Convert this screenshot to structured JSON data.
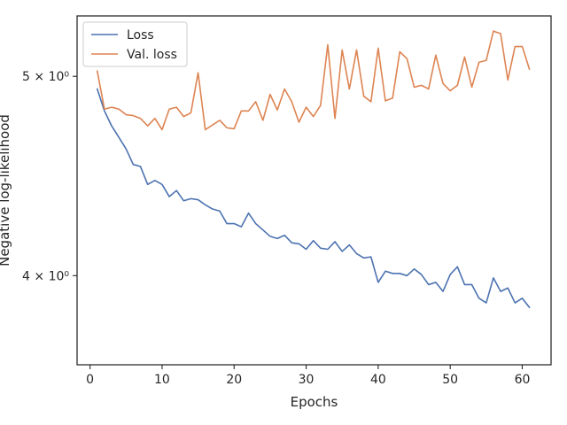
{
  "chart_data": {
    "type": "line",
    "xlabel": "Epochs",
    "ylabel": "Negative log-likelihood",
    "y_scale": "log",
    "xlim": [
      -1.8,
      64
    ],
    "ylim": [
      3.62,
      5.35
    ],
    "x_ticks": [
      {
        "value": 0,
        "label": "0"
      },
      {
        "value": 10,
        "label": "10"
      },
      {
        "value": 20,
        "label": "20"
      },
      {
        "value": 30,
        "label": "30"
      },
      {
        "value": 40,
        "label": "40"
      },
      {
        "value": 50,
        "label": "50"
      },
      {
        "value": 60,
        "label": "60"
      }
    ],
    "y_ticks": [
      {
        "value": 4,
        "label": "4 × 10⁰"
      },
      {
        "value": 5,
        "label": "5 × 10⁰"
      }
    ],
    "grid": false,
    "legend_position": "top-left",
    "x": [
      1,
      2,
      3,
      4,
      5,
      6,
      7,
      8,
      9,
      10,
      11,
      12,
      13,
      14,
      15,
      16,
      17,
      18,
      19,
      20,
      21,
      22,
      23,
      24,
      25,
      26,
      27,
      28,
      29,
      30,
      31,
      32,
      33,
      34,
      35,
      36,
      37,
      38,
      39,
      40,
      41,
      42,
      43,
      44,
      45,
      46,
      47,
      48,
      49,
      50,
      51,
      52,
      53,
      54,
      55,
      56,
      57,
      58,
      59,
      60,
      61
    ],
    "series": [
      {
        "name": "Loss",
        "color": "#4c72b0",
        "values": [
          4.93,
          4.81,
          4.73,
          4.67,
          4.61,
          4.53,
          4.52,
          4.43,
          4.45,
          4.43,
          4.37,
          4.4,
          4.35,
          4.36,
          4.355,
          4.33,
          4.31,
          4.3,
          4.24,
          4.24,
          4.225,
          4.29,
          4.24,
          4.21,
          4.18,
          4.17,
          4.185,
          4.15,
          4.145,
          4.12,
          4.16,
          4.125,
          4.12,
          4.155,
          4.11,
          4.14,
          4.1,
          4.08,
          4.085,
          3.97,
          4.02,
          4.01,
          4.01,
          4.0,
          4.03,
          4.005,
          3.96,
          3.97,
          3.93,
          4.005,
          4.04,
          3.96,
          3.96,
          3.9,
          3.88,
          3.99,
          3.93,
          3.945,
          3.88,
          3.9,
          3.86
        ]
      },
      {
        "name": "Val. loss",
        "color": "#dd8452",
        "values": [
          5.03,
          4.82,
          4.83,
          4.82,
          4.79,
          4.785,
          4.77,
          4.73,
          4.77,
          4.71,
          4.82,
          4.83,
          4.78,
          4.8,
          5.02,
          4.71,
          4.735,
          4.76,
          4.72,
          4.715,
          4.81,
          4.81,
          4.86,
          4.76,
          4.9,
          4.815,
          4.93,
          4.86,
          4.75,
          4.83,
          4.78,
          4.84,
          5.18,
          4.77,
          5.15,
          4.93,
          5.15,
          4.89,
          4.86,
          5.16,
          4.865,
          4.88,
          5.14,
          5.1,
          4.94,
          4.95,
          4.93,
          5.12,
          4.96,
          4.92,
          4.95,
          5.11,
          4.94,
          5.08,
          5.09,
          5.26,
          5.245,
          4.98,
          5.17,
          5.17,
          5.04
        ]
      }
    ]
  }
}
